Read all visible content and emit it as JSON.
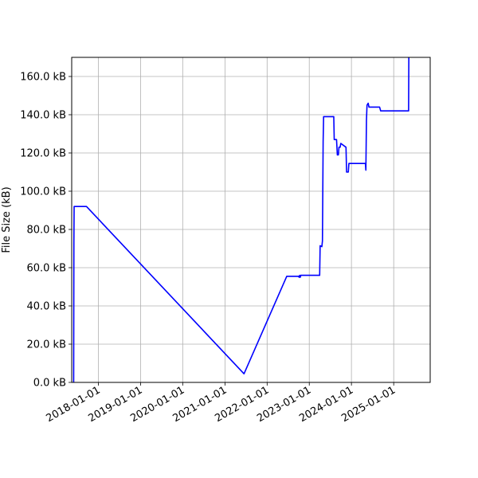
{
  "chart_data": {
    "type": "line",
    "title": "",
    "xlabel": "",
    "ylabel": "File Size (kB)",
    "xlim": [
      "2017-05-15",
      "2025-11-13"
    ],
    "ylim": [
      0,
      170
    ],
    "grid": true,
    "series": [
      {
        "color": "#0000ff",
        "x": [
          "2017-06-01",
          "2017-06-03",
          "2017-06-05",
          "2017-06-15",
          "2017-07-01",
          "2017-09-20",
          "2021-06-15",
          "2022-06-20",
          "2022-10-01",
          "2022-10-05",
          "2022-10-10",
          "2022-10-15",
          "2022-10-20",
          "2023-04-01",
          "2023-04-05",
          "2023-04-20",
          "2023-04-25",
          "2023-05-01",
          "2023-05-05",
          "2023-08-01",
          "2023-08-05",
          "2023-08-25",
          "2023-09-01",
          "2023-09-10",
          "2023-09-15",
          "2023-09-25",
          "2023-10-01",
          "2023-11-15",
          "2023-11-20",
          "2023-12-05",
          "2023-12-10",
          "2024-05-01",
          "2024-05-05",
          "2024-05-10",
          "2024-05-15",
          "2024-05-25",
          "2024-06-01",
          "2024-09-01",
          "2024-09-10",
          "2025-05-10",
          "2025-05-12"
        ],
        "y": [
          0,
          73,
          92,
          92,
          92,
          92,
          4.5,
          55.5,
          55.5,
          55,
          56,
          55,
          56,
          56,
          71.5,
          71,
          74,
          126,
          139,
          139,
          127,
          127,
          119,
          119,
          123,
          123,
          125,
          123,
          110,
          110,
          114.5,
          114.5,
          111,
          137,
          145,
          146,
          144,
          144,
          142,
          142,
          170
        ]
      }
    ],
    "xticks": [
      "2018-01-01",
      "2019-01-01",
      "2020-01-01",
      "2021-01-01",
      "2022-01-01",
      "2023-01-01",
      "2024-01-01",
      "2025-01-01"
    ],
    "yticks": [
      0,
      20,
      40,
      60,
      80,
      100,
      120,
      140,
      160
    ],
    "ytick_labels": [
      "0.0 kB",
      "20.0 kB",
      "40.0 kB",
      "60.0 kB",
      "80.0 kB",
      "100.0 kB",
      "120.0 kB",
      "140.0 kB",
      "160.0 kB"
    ]
  }
}
